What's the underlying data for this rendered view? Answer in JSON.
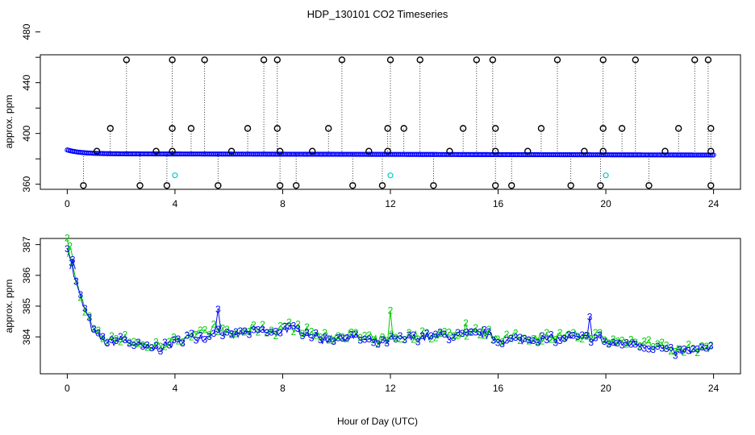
{
  "chart_data": [
    {
      "type": "scatter",
      "title": "HDP_130101  CO2 Timeseries",
      "xlabel": "",
      "ylabel": "approx. ppm",
      "xlim": [
        -1,
        25
      ],
      "ylim": [
        356,
        462
      ],
      "xticks": [
        "0",
        "4",
        "8",
        "12",
        "16",
        "20",
        "24"
      ],
      "yticks": [
        "360",
        "400",
        "440",
        "480"
      ],
      "colors": {
        "main": "#0000ff",
        "spike": "#000000",
        "alt": "#00cccc"
      },
      "baseline": {
        "start": 387,
        "settle": 384,
        "end": 383
      },
      "spikes_high": [
        {
          "x": 2.2,
          "y": 458
        },
        {
          "x": 3.9,
          "y": 458
        },
        {
          "x": 5.1,
          "y": 458
        },
        {
          "x": 7.3,
          "y": 458
        },
        {
          "x": 7.8,
          "y": 458
        },
        {
          "x": 10.2,
          "y": 458
        },
        {
          "x": 12.0,
          "y": 458
        },
        {
          "x": 13.1,
          "y": 458
        },
        {
          "x": 15.2,
          "y": 458
        },
        {
          "x": 15.8,
          "y": 458
        },
        {
          "x": 18.2,
          "y": 458
        },
        {
          "x": 19.9,
          "y": 458
        },
        {
          "x": 21.1,
          "y": 458
        },
        {
          "x": 23.3,
          "y": 458
        },
        {
          "x": 23.8,
          "y": 458
        }
      ],
      "spikes_mid": [
        {
          "x": 1.6,
          "y": 404
        },
        {
          "x": 3.9,
          "y": 404
        },
        {
          "x": 4.6,
          "y": 404
        },
        {
          "x": 6.7,
          "y": 404
        },
        {
          "x": 7.8,
          "y": 404
        },
        {
          "x": 9.7,
          "y": 404
        },
        {
          "x": 11.9,
          "y": 404
        },
        {
          "x": 12.5,
          "y": 404
        },
        {
          "x": 14.7,
          "y": 404
        },
        {
          "x": 15.9,
          "y": 404
        },
        {
          "x": 17.6,
          "y": 404
        },
        {
          "x": 19.9,
          "y": 404
        },
        {
          "x": 20.6,
          "y": 404
        },
        {
          "x": 22.7,
          "y": 404
        },
        {
          "x": 23.9,
          "y": 404
        }
      ],
      "spikes_low": [
        {
          "x": 0.6,
          "y": 359
        },
        {
          "x": 2.7,
          "y": 359
        },
        {
          "x": 3.7,
          "y": 359
        },
        {
          "x": 5.6,
          "y": 359
        },
        {
          "x": 7.9,
          "y": 359
        },
        {
          "x": 8.5,
          "y": 359
        },
        {
          "x": 10.6,
          "y": 359
        },
        {
          "x": 11.7,
          "y": 359
        },
        {
          "x": 13.6,
          "y": 359
        },
        {
          "x": 15.9,
          "y": 359
        },
        {
          "x": 16.5,
          "y": 359
        },
        {
          "x": 18.7,
          "y": 359
        },
        {
          "x": 19.8,
          "y": 359
        },
        {
          "x": 21.6,
          "y": 359
        },
        {
          "x": 23.9,
          "y": 359
        }
      ],
      "spikes_base": [
        {
          "x": 1.1,
          "y": 386
        },
        {
          "x": 3.3,
          "y": 386
        },
        {
          "x": 3.9,
          "y": 386
        },
        {
          "x": 6.1,
          "y": 386
        },
        {
          "x": 7.9,
          "y": 386
        },
        {
          "x": 9.1,
          "y": 386
        },
        {
          "x": 11.2,
          "y": 386
        },
        {
          "x": 11.9,
          "y": 386
        },
        {
          "x": 14.2,
          "y": 386
        },
        {
          "x": 15.9,
          "y": 386
        },
        {
          "x": 17.1,
          "y": 386
        },
        {
          "x": 19.2,
          "y": 386
        },
        {
          "x": 19.9,
          "y": 386
        },
        {
          "x": 22.2,
          "y": 386
        },
        {
          "x": 23.9,
          "y": 386
        }
      ],
      "alt_points": [
        {
          "x": 4.0,
          "y": 367
        },
        {
          "x": 12.0,
          "y": 367
        },
        {
          "x": 20.0,
          "y": 367
        }
      ]
    },
    {
      "type": "scatter",
      "title": "",
      "xlabel": "Hour of Day (UTC)",
      "ylabel": "approx. ppm",
      "xlim": [
        -1,
        25
      ],
      "ylim": [
        382.8,
        387.2
      ],
      "xticks": [
        "0",
        "4",
        "8",
        "12",
        "16",
        "20",
        "24"
      ],
      "yticks": [
        "384",
        "385",
        "386",
        "387"
      ],
      "colors": {
        "series3": "#0000ff",
        "series2": "#00cc00"
      },
      "marker_labels": [
        "3",
        "2"
      ],
      "curve_knots": [
        {
          "x": 0.0,
          "y": 387.0
        },
        {
          "x": 0.3,
          "y": 385.8
        },
        {
          "x": 0.6,
          "y": 385.0
        },
        {
          "x": 1.0,
          "y": 384.1
        },
        {
          "x": 1.5,
          "y": 383.8
        },
        {
          "x": 2.0,
          "y": 383.9
        },
        {
          "x": 3.0,
          "y": 383.6
        },
        {
          "x": 3.5,
          "y": 383.65
        },
        {
          "x": 4.0,
          "y": 383.8
        },
        {
          "x": 4.5,
          "y": 384.0
        },
        {
          "x": 5.2,
          "y": 384.0
        },
        {
          "x": 5.5,
          "y": 384.3
        },
        {
          "x": 6.0,
          "y": 384.0
        },
        {
          "x": 7.0,
          "y": 384.2
        },
        {
          "x": 7.8,
          "y": 384.1
        },
        {
          "x": 8.0,
          "y": 384.3
        },
        {
          "x": 8.6,
          "y": 384.2
        },
        {
          "x": 9.5,
          "y": 383.9
        },
        {
          "x": 10.5,
          "y": 384.0
        },
        {
          "x": 11.5,
          "y": 383.8
        },
        {
          "x": 12.0,
          "y": 383.9
        },
        {
          "x": 13.5,
          "y": 384.0
        },
        {
          "x": 14.5,
          "y": 384.05
        },
        {
          "x": 15.5,
          "y": 384.1
        },
        {
          "x": 16.0,
          "y": 383.9
        },
        {
          "x": 17.0,
          "y": 383.9
        },
        {
          "x": 18.5,
          "y": 383.95
        },
        {
          "x": 19.8,
          "y": 383.95
        },
        {
          "x": 20.1,
          "y": 383.75
        },
        {
          "x": 21.0,
          "y": 383.8
        },
        {
          "x": 22.0,
          "y": 383.65
        },
        {
          "x": 22.5,
          "y": 383.5
        },
        {
          "x": 23.5,
          "y": 383.55
        },
        {
          "x": 23.8,
          "y": 383.6
        }
      ],
      "outliers": [
        {
          "x": 5.6,
          "y": 384.9,
          "label": "3"
        },
        {
          "x": 12.0,
          "y": 384.85,
          "label": "2"
        },
        {
          "x": 19.4,
          "y": 384.65,
          "label": "3"
        },
        {
          "x": 0.1,
          "y": 386.95,
          "label": "2"
        },
        {
          "x": 0.2,
          "y": 386.5,
          "label": "3"
        },
        {
          "x": 14.8,
          "y": 384.45,
          "label": "2"
        }
      ]
    }
  ]
}
